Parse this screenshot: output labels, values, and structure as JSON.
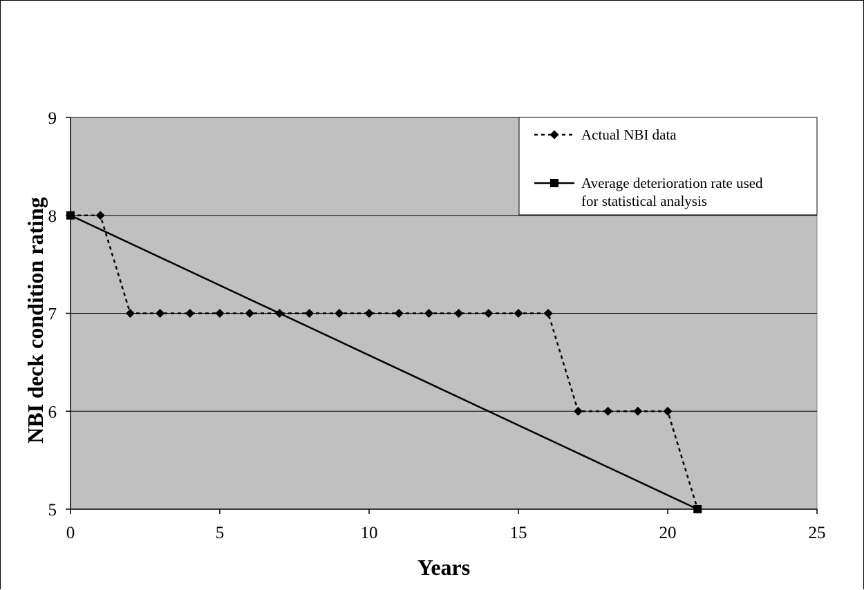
{
  "chart_data": {
    "type": "line",
    "title": "",
    "xlabel": "Years",
    "ylabel": "NBI deck condition rating",
    "xlim": [
      0,
      25
    ],
    "ylim": [
      5,
      9
    ],
    "x_ticks": [
      0,
      5,
      10,
      15,
      20,
      25
    ],
    "y_ticks": [
      5,
      6,
      7,
      8,
      9
    ],
    "grid": "horizontal",
    "plot_background": "#c0c0c0",
    "legend_position": "top-right",
    "series": [
      {
        "name": "Actual NBI data",
        "marker": "diamond",
        "line_style": "dotted",
        "color": "#000000",
        "x": [
          0,
          1,
          2,
          3,
          4,
          5,
          6,
          7,
          8,
          9,
          10,
          11,
          12,
          13,
          14,
          15,
          16,
          17,
          18,
          19,
          20,
          21
        ],
        "y": [
          8,
          8,
          7,
          7,
          7,
          7,
          7,
          7,
          7,
          7,
          7,
          7,
          7,
          7,
          7,
          7,
          7,
          6,
          6,
          6,
          6,
          5
        ]
      },
      {
        "name": "Average deterioration rate used for statistical analysis",
        "legend_lines": [
          "Average deterioration rate used",
          "for statistical analysis"
        ],
        "marker": "square",
        "line_style": "solid",
        "color": "#000000",
        "x": [
          0,
          21
        ],
        "y": [
          8,
          5
        ]
      }
    ]
  }
}
